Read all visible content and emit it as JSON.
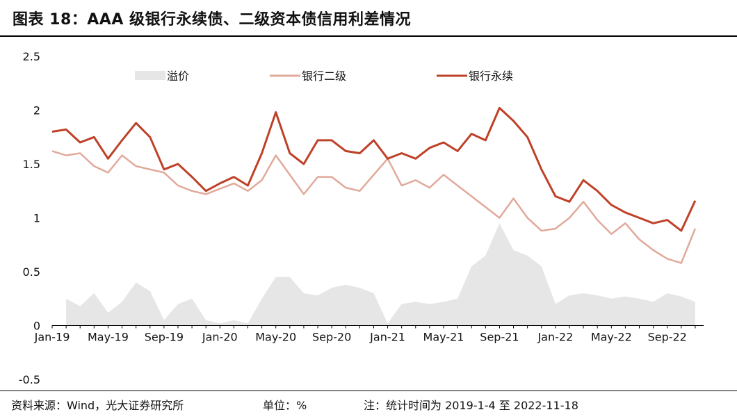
{
  "title": "图表 18：AAA 级银行永续债、二级资本债信用利差情况",
  "footer": {
    "source": "资料来源：Wind，光大证券研究所",
    "unit": "单位：%",
    "note": "注：统计时间为 2019-1-4 至 2022-11-18"
  },
  "colors": {
    "spread_fill": "#e6e6e6",
    "tier2": "#e1a99a",
    "perpetual": "#be4128"
  },
  "chart_data": {
    "type": "line",
    "title": "图表 18：AAA 级银行永续债、二级资本债信用利差情况",
    "xlabel": "",
    "ylabel": "",
    "ylim": [
      -0.5,
      2.5
    ],
    "yticks": [
      "2.5",
      "2",
      "1.5",
      "1",
      "0.5",
      "0",
      "-0.5"
    ],
    "xticks": [
      "Jan-19",
      "May-19",
      "Sep-19",
      "Jan-20",
      "May-20",
      "Sep-20",
      "Jan-21",
      "May-21",
      "Sep-21",
      "Jan-22",
      "May-22",
      "Sep-22"
    ],
    "x_range": [
      "2019-01-04",
      "2022-11-18"
    ],
    "grid": false,
    "legend_position": "top",
    "series": [
      {
        "name": "溢价",
        "kind": "area",
        "x": [
          "2019-02",
          "2019-03",
          "2019-04",
          "2019-05",
          "2019-06",
          "2019-07",
          "2019-08",
          "2019-09",
          "2019-10",
          "2019-11",
          "2019-12",
          "2020-01",
          "2020-02",
          "2020-03",
          "2020-04",
          "2020-05",
          "2020-06",
          "2020-07",
          "2020-08",
          "2020-09",
          "2020-10",
          "2020-11",
          "2020-12",
          "2021-01",
          "2021-02",
          "2021-03",
          "2021-04",
          "2021-05",
          "2021-06",
          "2021-07",
          "2021-08",
          "2021-09",
          "2021-10",
          "2021-11",
          "2021-12",
          "2022-01",
          "2022-02",
          "2022-03",
          "2022-04",
          "2022-05",
          "2022-06",
          "2022-07",
          "2022-08",
          "2022-09",
          "2022-10",
          "2022-11"
        ],
        "values": [
          0.25,
          0.18,
          0.3,
          0.12,
          0.22,
          0.4,
          0.32,
          0.05,
          0.2,
          0.25,
          0.05,
          0.02,
          0.05,
          0.02,
          0.25,
          0.45,
          0.45,
          0.3,
          0.28,
          0.35,
          0.38,
          0.35,
          0.3,
          0.02,
          0.2,
          0.22,
          0.2,
          0.22,
          0.25,
          0.55,
          0.65,
          0.95,
          0.7,
          0.65,
          0.55,
          0.2,
          0.28,
          0.3,
          0.28,
          0.25,
          0.27,
          0.25,
          0.22,
          0.3,
          0.27,
          0.22
        ]
      },
      {
        "name": "银行二级",
        "kind": "line",
        "x": [
          "2019-01",
          "2019-02",
          "2019-03",
          "2019-04",
          "2019-05",
          "2019-06",
          "2019-07",
          "2019-08",
          "2019-09",
          "2019-10",
          "2019-11",
          "2019-12",
          "2020-01",
          "2020-02",
          "2020-03",
          "2020-04",
          "2020-05",
          "2020-06",
          "2020-07",
          "2020-08",
          "2020-09",
          "2020-10",
          "2020-11",
          "2020-12",
          "2021-01",
          "2021-02",
          "2021-03",
          "2021-04",
          "2021-05",
          "2021-06",
          "2021-07",
          "2021-08",
          "2021-09",
          "2021-10",
          "2021-11",
          "2021-12",
          "2022-01",
          "2022-02",
          "2022-03",
          "2022-04",
          "2022-05",
          "2022-06",
          "2022-07",
          "2022-08",
          "2022-09",
          "2022-10",
          "2022-11"
        ],
        "values": [
          1.62,
          1.58,
          1.6,
          1.48,
          1.42,
          1.58,
          1.48,
          1.45,
          1.42,
          1.3,
          1.25,
          1.22,
          1.27,
          1.32,
          1.25,
          1.35,
          1.58,
          1.4,
          1.22,
          1.38,
          1.38,
          1.28,
          1.25,
          1.4,
          1.55,
          1.3,
          1.35,
          1.28,
          1.4,
          1.3,
          1.2,
          1.1,
          1.0,
          1.18,
          1.0,
          0.88,
          0.9,
          1.0,
          1.15,
          0.98,
          0.85,
          0.95,
          0.8,
          0.7,
          0.62,
          0.58,
          0.9
        ]
      },
      {
        "name": "银行永续",
        "kind": "line",
        "x": [
          "2019-01",
          "2019-02",
          "2019-03",
          "2019-04",
          "2019-05",
          "2019-06",
          "2019-07",
          "2019-08",
          "2019-09",
          "2019-10",
          "2019-11",
          "2019-12",
          "2020-01",
          "2020-02",
          "2020-03",
          "2020-04",
          "2020-05",
          "2020-06",
          "2020-07",
          "2020-08",
          "2020-09",
          "2020-10",
          "2020-11",
          "2020-12",
          "2021-01",
          "2021-02",
          "2021-03",
          "2021-04",
          "2021-05",
          "2021-06",
          "2021-07",
          "2021-08",
          "2021-09",
          "2021-10",
          "2021-11",
          "2021-12",
          "2022-01",
          "2022-02",
          "2022-03",
          "2022-04",
          "2022-05",
          "2022-06",
          "2022-07",
          "2022-08",
          "2022-09",
          "2022-10",
          "2022-11"
        ],
        "values": [
          1.8,
          1.82,
          1.7,
          1.75,
          1.55,
          1.72,
          1.88,
          1.75,
          1.45,
          1.5,
          1.38,
          1.25,
          1.32,
          1.38,
          1.3,
          1.6,
          1.98,
          1.6,
          1.5,
          1.72,
          1.72,
          1.62,
          1.6,
          1.72,
          1.55,
          1.6,
          1.55,
          1.65,
          1.7,
          1.62,
          1.78,
          1.72,
          2.02,
          1.9,
          1.75,
          1.45,
          1.2,
          1.15,
          1.35,
          1.25,
          1.12,
          1.05,
          1.0,
          0.95,
          0.98,
          0.88,
          1.16
        ]
      }
    ]
  }
}
